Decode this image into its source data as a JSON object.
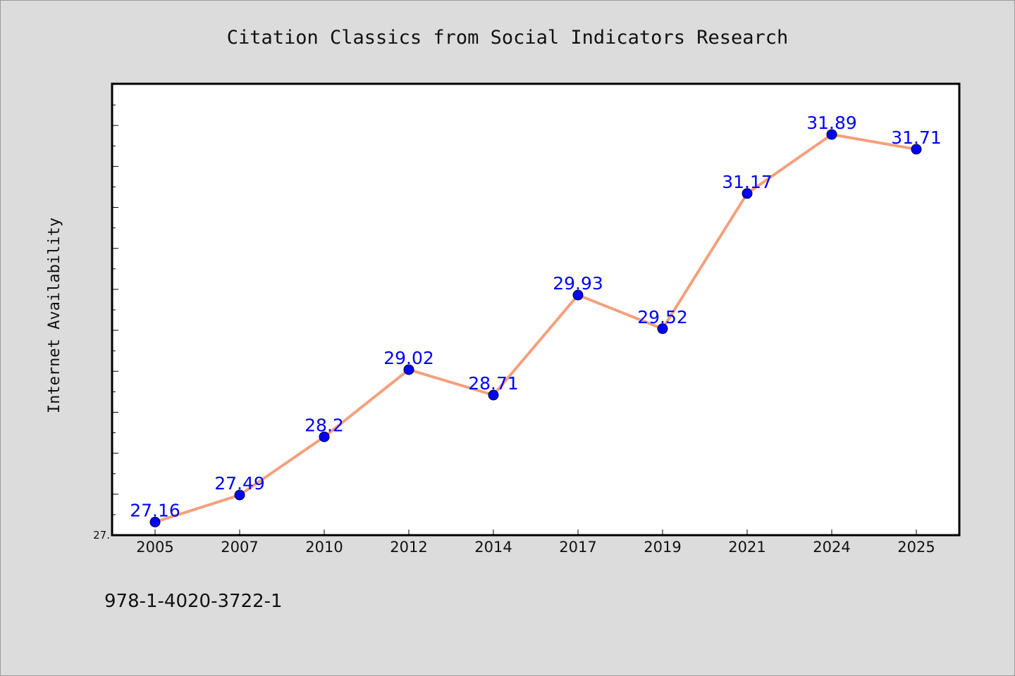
{
  "chart_data": {
    "type": "line",
    "title": "Citation Classics from Social Indicators Research",
    "xlabel": "",
    "ylabel": "Internet Availability",
    "categories": [
      "2005",
      "2007",
      "2010",
      "2012",
      "2014",
      "2017",
      "2019",
      "2021",
      "2024",
      "2025"
    ],
    "series": [
      {
        "values": [
          27.16,
          27.49,
          28.2,
          29.02,
          28.71,
          29.93,
          29.52,
          31.17,
          31.89,
          31.71
        ],
        "labels": [
          "27.16",
          "27.49",
          "28.2",
          "29.02",
          "28.71",
          "29.93",
          "29.52",
          "31.17",
          "31.89",
          "31.71"
        ]
      }
    ],
    "ylim": [
      27.0,
      32.5
    ],
    "ytick_labels": [
      "27."
    ],
    "grid": false,
    "legend": "none",
    "colors": {
      "line": "#f4a07c",
      "marker": "#0000ff",
      "data_label": "#0000ff",
      "background": "#dcdcdc",
      "plot_background": "#ffffff"
    }
  },
  "footnote": "978-1-4020-3722-1"
}
